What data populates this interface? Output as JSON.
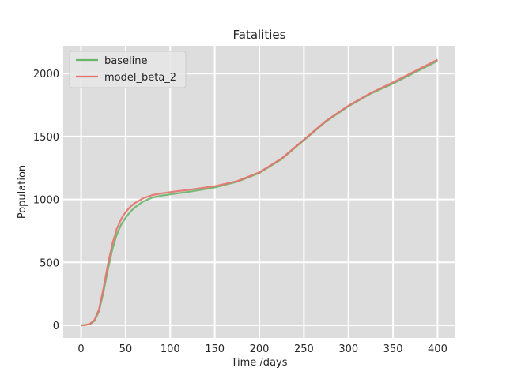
{
  "chart_data": {
    "type": "line",
    "title": "Fatalities",
    "xlabel": "Time /days",
    "ylabel": "Population",
    "xlim": [
      -20,
      420
    ],
    "ylim": [
      -100,
      2220
    ],
    "xticks": [
      0,
      50,
      100,
      150,
      200,
      250,
      300,
      350,
      400
    ],
    "yticks": [
      0,
      500,
      1000,
      1500,
      2000
    ],
    "grid": true,
    "legend_position": "top-left",
    "series": [
      {
        "name": "baseline",
        "color": "#6ab56a",
        "x": [
          0,
          5,
          10,
          15,
          20,
          25,
          30,
          35,
          40,
          45,
          50,
          55,
          60,
          70,
          80,
          90,
          100,
          125,
          150,
          175,
          200,
          225,
          250,
          275,
          300,
          325,
          350,
          375,
          400
        ],
        "y": [
          0,
          3,
          10,
          35,
          110,
          260,
          440,
          600,
          720,
          800,
          855,
          900,
          935,
          985,
          1015,
          1030,
          1040,
          1065,
          1095,
          1140,
          1210,
          1320,
          1470,
          1620,
          1740,
          1840,
          1920,
          2010,
          2100
        ]
      },
      {
        "name": "model_beta_2",
        "color": "#e8716b",
        "x": [
          0,
          5,
          10,
          15,
          20,
          25,
          30,
          35,
          40,
          45,
          50,
          55,
          60,
          70,
          80,
          90,
          100,
          125,
          150,
          175,
          200,
          225,
          250,
          275,
          300,
          325,
          350,
          375,
          400
        ],
        "y": [
          0,
          3,
          12,
          42,
          125,
          290,
          480,
          645,
          765,
          845,
          900,
          940,
          970,
          1010,
          1035,
          1048,
          1058,
          1080,
          1105,
          1145,
          1215,
          1325,
          1475,
          1625,
          1745,
          1845,
          1930,
          2020,
          2110
        ]
      }
    ]
  }
}
